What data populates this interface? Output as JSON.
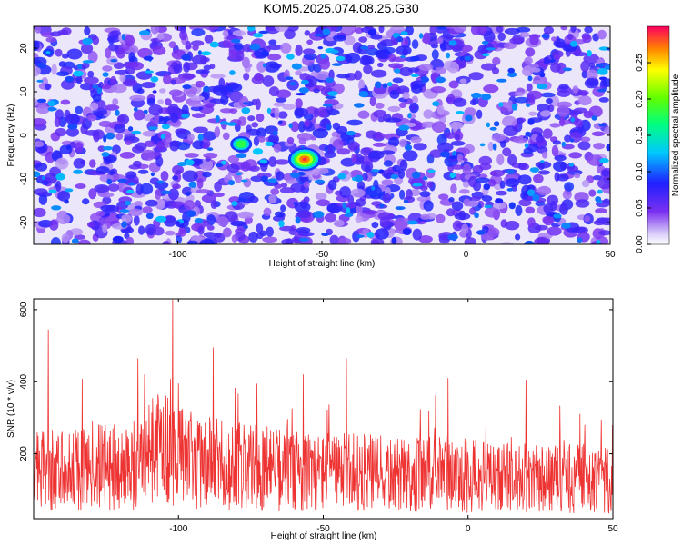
{
  "title": "KOM5.2025.074.08.25.G30",
  "chart_data": [
    {
      "type": "heatmap",
      "xlabel": "Height of straight line (km)",
      "ylabel": "Frequency (Hz)",
      "xlim": [
        -150,
        50
      ],
      "ylim": [
        -25,
        25
      ],
      "x_ticks": [
        -100,
        -50,
        0,
        50
      ],
      "y_ticks": [
        -20,
        -10,
        0,
        10,
        20
      ],
      "colorbar": {
        "label": "Normalized spectral amplitude",
        "range": [
          0.0,
          0.3
        ],
        "ticks": [
          0.0,
          0.05,
          0.1,
          0.15,
          0.2,
          0.25
        ],
        "tick_labels": [
          "0.00",
          "0.05",
          "0.10",
          "0.15",
          "0.20",
          "0.25"
        ]
      },
      "hotspots": [
        {
          "x": -56,
          "y": -5.5,
          "value": 0.29
        },
        {
          "x": -78,
          "y": -2,
          "value": 0.18
        },
        {
          "x": -145,
          "y": 19,
          "value": 0.12
        },
        {
          "x": -108,
          "y": 10,
          "value": 0.08
        },
        {
          "x": -100,
          "y": -20,
          "value": 0.08
        }
      ]
    },
    {
      "type": "line",
      "xlabel": "Height of straight line (km)",
      "ylabel": "SNR (10 * v/v)",
      "xlim": [
        -150,
        50
      ],
      "ylim": [
        20,
        630
      ],
      "x_ticks": [
        -100,
        -50,
        0,
        50
      ],
      "y_ticks": [
        200,
        400,
        600
      ],
      "color": "#ee3333",
      "series": [
        {
          "x": [
            -150,
            -130,
            -115,
            -110,
            -105,
            -102,
            -95,
            -85,
            -70,
            -55,
            -40,
            -25,
            -10,
            0,
            10,
            25,
            40,
            50
          ],
          "mean": [
            150,
            160,
            170,
            210,
            230,
            200,
            180,
            170,
            160,
            150,
            150,
            140,
            145,
            140,
            135,
            130,
            130,
            125
          ],
          "peaks": [
            {
              "x": -145,
              "y": 545
            },
            {
              "x": -114,
              "y": 465
            },
            {
              "x": -102,
              "y": 628
            },
            {
              "x": -88,
              "y": 495
            },
            {
              "x": -57,
              "y": 420
            },
            {
              "x": -42,
              "y": 465
            },
            {
              "x": -7,
              "y": 410
            },
            {
              "x": 20,
              "y": 405
            },
            {
              "x": 46,
              "y": 295
            }
          ]
        }
      ]
    }
  ]
}
